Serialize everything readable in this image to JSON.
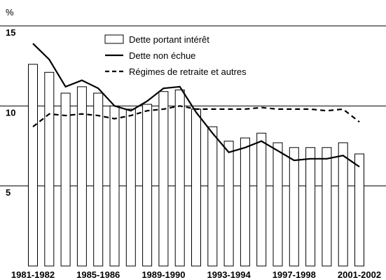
{
  "chart_data": {
    "type": "bar",
    "ylabel": "%",
    "categories": [
      "1981-1982",
      null,
      null,
      null,
      "1985-1986",
      null,
      null,
      null,
      "1989-1990",
      null,
      null,
      null,
      "1993-1994",
      null,
      null,
      null,
      "1997-1998",
      null,
      null,
      null,
      "2001-2002"
    ],
    "series": [
      {
        "name": "Dette portant intérêt",
        "type": "bar",
        "color": "#ffffff",
        "values": [
          12.6,
          12.1,
          10.8,
          11.2,
          10.8,
          10.0,
          9.8,
          10.1,
          10.9,
          11.0,
          9.8,
          8.7,
          7.8,
          8.0,
          8.3,
          7.7,
          7.4,
          7.4,
          7.4,
          7.7,
          7.0
        ]
      },
      {
        "name": "Dette non échue",
        "type": "line",
        "color": "#000000",
        "dashed": false,
        "values": [
          13.9,
          12.9,
          11.2,
          11.6,
          11.1,
          10.0,
          9.7,
          10.3,
          11.1,
          11.2,
          9.6,
          8.3,
          7.1,
          7.4,
          7.8,
          7.2,
          6.6,
          6.7,
          6.7,
          6.9,
          6.2
        ]
      },
      {
        "name": "Régimes de retraite et autres",
        "type": "line",
        "color": "#000000",
        "dashed": true,
        "values": [
          8.7,
          9.5,
          9.4,
          9.5,
          9.4,
          9.2,
          9.4,
          9.7,
          9.8,
          10.0,
          9.8,
          9.8,
          9.8,
          9.8,
          9.9,
          9.8,
          9.8,
          9.8,
          9.7,
          9.8,
          9.0
        ]
      }
    ],
    "ylim": [
      0,
      15
    ],
    "yticks": [
      5,
      10,
      15
    ],
    "grid": true
  }
}
